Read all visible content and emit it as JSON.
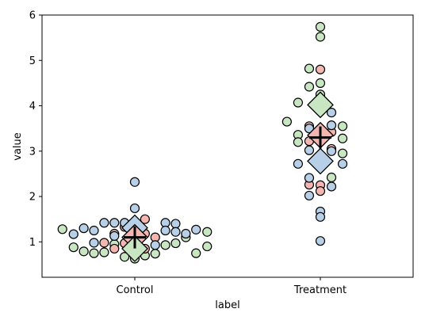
{
  "chart_data": {
    "type": "scatter",
    "xlabel": "label",
    "ylabel": "value",
    "categories": [
      "Control",
      "Treatment"
    ],
    "ylim": [
      0.22,
      6.0
    ],
    "yticks": [
      1,
      2,
      3,
      4,
      5,
      6
    ],
    "grid": false,
    "legend": "none",
    "colors": {
      "red": "#f4b6b0",
      "blue": "#b7cfe7",
      "green": "#c9e6c3",
      "edge": "#000000"
    },
    "series": [
      {
        "color_key": "green",
        "points": [
          {
            "category": "Control",
            "offset": -0.78,
            "y": 1.28
          },
          {
            "category": "Control",
            "offset": -0.66,
            "y": 0.88
          },
          {
            "category": "Control",
            "offset": -0.55,
            "y": 0.79
          },
          {
            "category": "Control",
            "offset": -0.44,
            "y": 0.75
          },
          {
            "category": "Control",
            "offset": -0.33,
            "y": 0.77
          },
          {
            "category": "Control",
            "offset": -0.22,
            "y": 0.95
          },
          {
            "category": "Control",
            "offset": -0.11,
            "y": 0.67
          },
          {
            "category": "Control",
            "offset": 0.0,
            "y": 0.63
          },
          {
            "category": "Control",
            "offset": 0.11,
            "y": 0.7
          },
          {
            "category": "Control",
            "offset": 0.22,
            "y": 0.74
          },
          {
            "category": "Control",
            "offset": 0.33,
            "y": 0.93
          },
          {
            "category": "Control",
            "offset": 0.44,
            "y": 0.97
          },
          {
            "category": "Control",
            "offset": 0.55,
            "y": 1.1
          },
          {
            "category": "Control",
            "offset": 0.66,
            "y": 0.75
          },
          {
            "category": "Control",
            "offset": 0.78,
            "y": 0.9
          },
          {
            "category": "Control",
            "offset": 0.78,
            "y": 1.22
          },
          {
            "category": "Treatment",
            "offset": 0.0,
            "y": 5.74
          },
          {
            "category": "Treatment",
            "offset": 0.0,
            "y": 5.52
          },
          {
            "category": "Treatment",
            "offset": -0.12,
            "y": 4.82
          },
          {
            "category": "Treatment",
            "offset": 0.0,
            "y": 4.5
          },
          {
            "category": "Treatment",
            "offset": -0.12,
            "y": 4.42
          },
          {
            "category": "Treatment",
            "offset": 0.0,
            "y": 4.25
          },
          {
            "category": "Treatment",
            "offset": -0.24,
            "y": 4.07
          },
          {
            "category": "Treatment",
            "offset": -0.36,
            "y": 3.65
          },
          {
            "category": "Treatment",
            "offset": -0.24,
            "y": 3.36
          },
          {
            "category": "Treatment",
            "offset": -0.24,
            "y": 3.2
          },
          {
            "category": "Treatment",
            "offset": 0.24,
            "y": 3.28
          },
          {
            "category": "Treatment",
            "offset": 0.24,
            "y": 2.95
          },
          {
            "category": "Treatment",
            "offset": 0.12,
            "y": 2.42
          },
          {
            "category": "Treatment",
            "offset": 0.24,
            "y": 3.55
          }
        ]
      },
      {
        "color_key": "red",
        "points": [
          {
            "category": "Control",
            "offset": 0.11,
            "y": 1.5
          },
          {
            "category": "Control",
            "offset": 0.0,
            "y": 1.4
          },
          {
            "category": "Control",
            "offset": -0.11,
            "y": 1.33
          },
          {
            "category": "Control",
            "offset": -0.22,
            "y": 1.18
          },
          {
            "category": "Control",
            "offset": 0.11,
            "y": 1.18
          },
          {
            "category": "Control",
            "offset": 0.22,
            "y": 1.1
          },
          {
            "category": "Control",
            "offset": -0.33,
            "y": 0.98
          },
          {
            "category": "Control",
            "offset": -0.11,
            "y": 0.97
          },
          {
            "category": "Control",
            "offset": 0.11,
            "y": 0.85
          },
          {
            "category": "Control",
            "offset": -0.22,
            "y": 0.85
          },
          {
            "category": "Treatment",
            "offset": 0.0,
            "y": 4.8
          },
          {
            "category": "Treatment",
            "offset": -0.12,
            "y": 3.55
          },
          {
            "category": "Treatment",
            "offset": 0.0,
            "y": 3.35
          },
          {
            "category": "Treatment",
            "offset": 0.12,
            "y": 3.42
          },
          {
            "category": "Treatment",
            "offset": -0.12,
            "y": 3.22
          },
          {
            "category": "Treatment",
            "offset": 0.12,
            "y": 3.05
          },
          {
            "category": "Treatment",
            "offset": -0.12,
            "y": 2.26
          },
          {
            "category": "Treatment",
            "offset": 0.0,
            "y": 2.25
          },
          {
            "category": "Treatment",
            "offset": 0.0,
            "y": 2.12
          }
        ]
      },
      {
        "color_key": "blue",
        "points": [
          {
            "category": "Control",
            "offset": 0.0,
            "y": 2.32
          },
          {
            "category": "Control",
            "offset": 0.0,
            "y": 1.74
          },
          {
            "category": "Control",
            "offset": -0.22,
            "y": 1.42
          },
          {
            "category": "Control",
            "offset": -0.33,
            "y": 1.42
          },
          {
            "category": "Control",
            "offset": -0.11,
            "y": 1.42
          },
          {
            "category": "Control",
            "offset": 0.33,
            "y": 1.42
          },
          {
            "category": "Control",
            "offset": 0.44,
            "y": 1.4
          },
          {
            "category": "Control",
            "offset": -0.55,
            "y": 1.3
          },
          {
            "category": "Control",
            "offset": -0.44,
            "y": 1.25
          },
          {
            "category": "Control",
            "offset": -0.66,
            "y": 1.17
          },
          {
            "category": "Control",
            "offset": -0.22,
            "y": 1.13
          },
          {
            "category": "Control",
            "offset": 0.33,
            "y": 1.25
          },
          {
            "category": "Control",
            "offset": 0.44,
            "y": 1.22
          },
          {
            "category": "Control",
            "offset": 0.55,
            "y": 1.18
          },
          {
            "category": "Control",
            "offset": 0.66,
            "y": 1.27
          },
          {
            "category": "Control",
            "offset": -0.44,
            "y": 0.98
          },
          {
            "category": "Control",
            "offset": 0.22,
            "y": 0.93
          },
          {
            "category": "Control",
            "offset": 0.0,
            "y": 0.78
          },
          {
            "category": "Treatment",
            "offset": -0.12,
            "y": 3.5
          },
          {
            "category": "Treatment",
            "offset": 0.12,
            "y": 3.57
          },
          {
            "category": "Treatment",
            "offset": -0.12,
            "y": 3.02
          },
          {
            "category": "Treatment",
            "offset": 0.12,
            "y": 3.0
          },
          {
            "category": "Treatment",
            "offset": -0.24,
            "y": 2.72
          },
          {
            "category": "Treatment",
            "offset": 0.24,
            "y": 2.72
          },
          {
            "category": "Treatment",
            "offset": -0.12,
            "y": 2.41
          },
          {
            "category": "Treatment",
            "offset": 0.12,
            "y": 2.22
          },
          {
            "category": "Treatment",
            "offset": -0.12,
            "y": 2.02
          },
          {
            "category": "Treatment",
            "offset": 0.0,
            "y": 1.67
          },
          {
            "category": "Treatment",
            "offset": 0.0,
            "y": 1.55
          },
          {
            "category": "Treatment",
            "offset": 0.0,
            "y": 1.02
          },
          {
            "category": "Treatment",
            "offset": 0.12,
            "y": 3.85
          }
        ]
      }
    ],
    "group_markers": [
      {
        "category": "Control",
        "color_key": "blue",
        "y": 1.31
      },
      {
        "category": "Control",
        "color_key": "red",
        "y": 1.1
      },
      {
        "category": "Control",
        "color_key": "green",
        "y": 0.85
      },
      {
        "category": "Treatment",
        "color_key": "green",
        "y": 4.02
      },
      {
        "category": "Treatment",
        "color_key": "red",
        "y": 3.35
      },
      {
        "category": "Treatment",
        "color_key": "blue",
        "y": 2.78
      }
    ],
    "overall_means": [
      {
        "category": "Control",
        "y": 1.1
      },
      {
        "category": "Treatment",
        "y": 3.3
      }
    ]
  }
}
